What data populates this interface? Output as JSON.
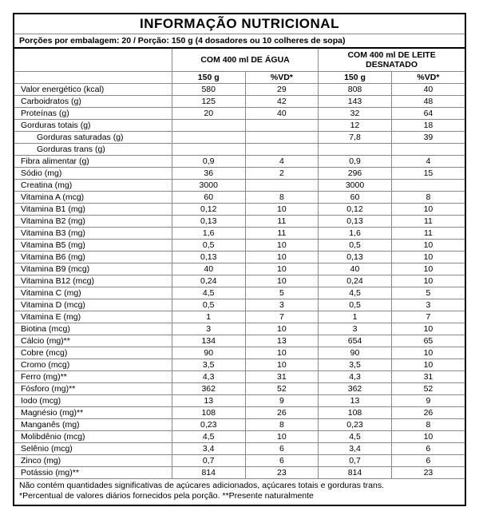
{
  "title": "INFORMAÇÃO NUTRICIONAL",
  "serving_line": "Porções por embalagem: 20 / Porção: 150 g (4 dosadores ou 10 colheres de sopa)",
  "group_headers": [
    "COM 400 ml DE ÁGUA",
    "COM 400 ml DE LEITE DESNATADO"
  ],
  "sub_headers": [
    "150 g",
    "%VD*",
    "150 g",
    "%VD*"
  ],
  "rows": [
    {
      "name": "Valor energético (kcal)",
      "indent": false,
      "v": [
        "580",
        "29",
        "808",
        "40"
      ]
    },
    {
      "name": "Carboidratos (g)",
      "indent": false,
      "v": [
        "125",
        "42",
        "143",
        "48"
      ]
    },
    {
      "name": "Proteínas (g)",
      "indent": false,
      "v": [
        "20",
        "40",
        "32",
        "64"
      ]
    },
    {
      "name": "Gorduras totais (g)",
      "indent": false,
      "v": [
        "",
        "",
        "12",
        "18"
      ]
    },
    {
      "name": "Gorduras saturadas (g)",
      "indent": true,
      "v": [
        "",
        "",
        "7,8",
        "39"
      ]
    },
    {
      "name": "Gorduras trans (g)",
      "indent": true,
      "v": [
        "",
        "",
        "",
        ""
      ]
    },
    {
      "name": "Fibra alimentar (g)",
      "indent": false,
      "v": [
        "0,9",
        "4",
        "0,9",
        "4"
      ]
    },
    {
      "name": "Sódio (mg)",
      "indent": false,
      "v": [
        "36",
        "2",
        "296",
        "15"
      ]
    },
    {
      "name": "Creatina (mg)",
      "indent": false,
      "v": [
        "3000",
        "",
        "3000",
        ""
      ]
    },
    {
      "name": "Vitamina A (mcg)",
      "indent": false,
      "v": [
        "60",
        "8",
        "60",
        "8"
      ]
    },
    {
      "name": "Vitamina B1 (mg)",
      "indent": false,
      "v": [
        "0,12",
        "10",
        "0,12",
        "10"
      ]
    },
    {
      "name": "Vitamina B2 (mg)",
      "indent": false,
      "v": [
        "0,13",
        "11",
        "0,13",
        "11"
      ]
    },
    {
      "name": "Vitamina B3 (mg)",
      "indent": false,
      "v": [
        "1,6",
        "11",
        "1,6",
        "11"
      ]
    },
    {
      "name": "Vitamina B5 (mg)",
      "indent": false,
      "v": [
        "0,5",
        "10",
        "0,5",
        "10"
      ]
    },
    {
      "name": "Vitamina B6 (mg)",
      "indent": false,
      "v": [
        "0,13",
        "10",
        "0,13",
        "10"
      ]
    },
    {
      "name": "Vitamina B9 (mcg)",
      "indent": false,
      "v": [
        "40",
        "10",
        "40",
        "10"
      ]
    },
    {
      "name": "Vitamina B12 (mcg)",
      "indent": false,
      "v": [
        "0,24",
        "10",
        "0,24",
        "10"
      ]
    },
    {
      "name": "Vitamina C (mg)",
      "indent": false,
      "v": [
        "4,5",
        "5",
        "4,5",
        "5"
      ]
    },
    {
      "name": "Vitamina D (mcg)",
      "indent": false,
      "v": [
        "0,5",
        "3",
        "0,5",
        "3"
      ]
    },
    {
      "name": "Vitamina E (mg)",
      "indent": false,
      "v": [
        "1",
        "7",
        "1",
        "7"
      ]
    },
    {
      "name": "Biotina (mcg)",
      "indent": false,
      "v": [
        "3",
        "10",
        "3",
        "10"
      ]
    },
    {
      "name": "Cálcio (mg)**",
      "indent": false,
      "v": [
        "134",
        "13",
        "654",
        "65"
      ]
    },
    {
      "name": "Cobre (mcg)",
      "indent": false,
      "v": [
        "90",
        "10",
        "90",
        "10"
      ]
    },
    {
      "name": "Cromo (mcg)",
      "indent": false,
      "v": [
        "3,5",
        "10",
        "3,5",
        "10"
      ]
    },
    {
      "name": "Ferro (mg)**",
      "indent": false,
      "v": [
        "4,3",
        "31",
        "4,3",
        "31"
      ]
    },
    {
      "name": "Fósforo (mg)**",
      "indent": false,
      "v": [
        "362",
        "52",
        "362",
        "52"
      ]
    },
    {
      "name": "Iodo (mcg)",
      "indent": false,
      "v": [
        "13",
        "9",
        "13",
        "9"
      ]
    },
    {
      "name": "Magnésio (mg)**",
      "indent": false,
      "v": [
        "108",
        "26",
        "108",
        "26"
      ]
    },
    {
      "name": "Manganês (mg)",
      "indent": false,
      "v": [
        "0,23",
        "8",
        "0,23",
        "8"
      ]
    },
    {
      "name": "Molibdênio (mcg)",
      "indent": false,
      "v": [
        "4,5",
        "10",
        "4,5",
        "10"
      ]
    },
    {
      "name": "Selênio (mcg)",
      "indent": false,
      "v": [
        "3,4",
        "6",
        "3,4",
        "6"
      ]
    },
    {
      "name": "Zinco (mg)",
      "indent": false,
      "v": [
        "0,7",
        "6",
        "0,7",
        "6"
      ]
    },
    {
      "name": "Potássio (mg)**",
      "indent": false,
      "v": [
        "814",
        "23",
        "814",
        "23"
      ]
    }
  ],
  "footnotes": [
    "Não contém quantidades significativas de açúcares adicionados, açúcares totais e gorduras trans.",
    "*Percentual de valores diários fornecidos pela porção. **Presente naturalmente"
  ]
}
